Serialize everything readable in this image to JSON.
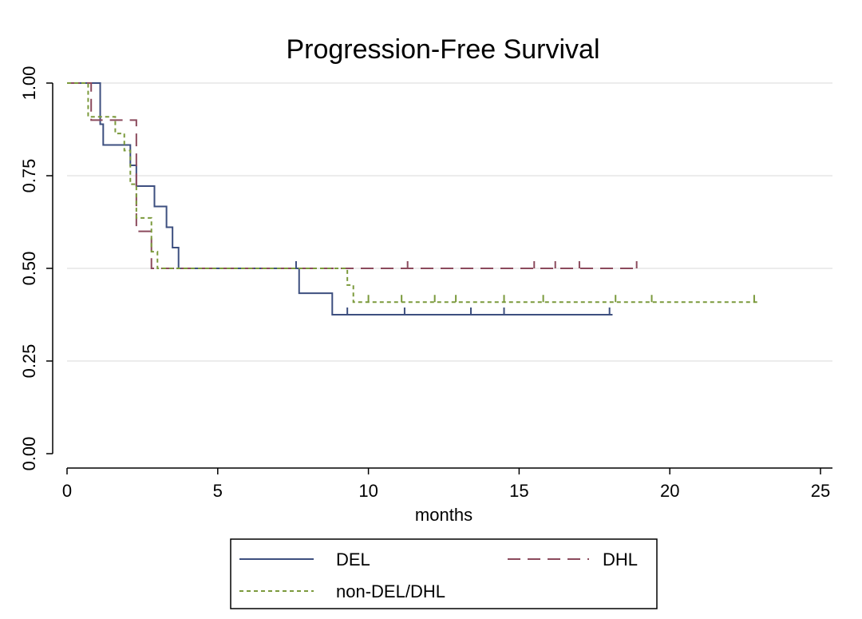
{
  "chart_data": {
    "type": "line",
    "title": "Progression-Free Survival",
    "xlabel": "months",
    "ylabel": "",
    "xlim": [
      0,
      25
    ],
    "ylim": [
      0,
      1
    ],
    "xticks": [
      0,
      5,
      10,
      15,
      20,
      25
    ],
    "yticks": [
      0,
      0.25,
      0.5,
      0.75,
      1
    ],
    "xtick_labels": [
      "0",
      "5",
      "10",
      "15",
      "20",
      "25"
    ],
    "ytick_labels": [
      "0.00",
      "0.25",
      "0.50",
      "0.75",
      "1.00"
    ],
    "grid": true,
    "legend_position": "bottom",
    "series": [
      {
        "name": "DEL",
        "color": "#3d4f7f",
        "dash": "solid",
        "steps": [
          [
            0,
            1.0
          ],
          [
            1.1,
            0.889
          ],
          [
            1.2,
            0.833
          ],
          [
            2.1,
            0.778
          ],
          [
            2.3,
            0.722
          ],
          [
            2.9,
            0.667
          ],
          [
            3.3,
            0.611
          ],
          [
            3.5,
            0.556
          ],
          [
            3.7,
            0.5
          ],
          [
            7.7,
            0.433
          ],
          [
            8.8,
            0.375
          ],
          [
            18.1,
            0.375
          ]
        ],
        "censor_times": [
          7.6,
          9.3,
          11.2,
          13.4,
          14.5,
          18.0
        ]
      },
      {
        "name": "DHL",
        "color": "#8b4a5c",
        "dash": "long-dash",
        "steps": [
          [
            0,
            1.0
          ],
          [
            0.8,
            0.9
          ],
          [
            2.3,
            0.6
          ],
          [
            2.8,
            0.5
          ],
          [
            19.0,
            0.5
          ]
        ],
        "censor_times": [
          11.3,
          15.5,
          16.2,
          17.0,
          18.9
        ]
      },
      {
        "name": "non-DEL/DHL",
        "color": "#7b9a3c",
        "dash": "dotted",
        "steps": [
          [
            0,
            1.0
          ],
          [
            0.7,
            0.909
          ],
          [
            1.6,
            0.864
          ],
          [
            1.9,
            0.818
          ],
          [
            2.1,
            0.727
          ],
          [
            2.3,
            0.636
          ],
          [
            2.8,
            0.545
          ],
          [
            3.0,
            0.5
          ],
          [
            9.3,
            0.455
          ],
          [
            9.5,
            0.409
          ],
          [
            22.9,
            0.409
          ]
        ],
        "censor_times": [
          10.0,
          11.1,
          12.2,
          12.9,
          14.5,
          15.8,
          18.2,
          19.4,
          22.8
        ]
      }
    ]
  }
}
